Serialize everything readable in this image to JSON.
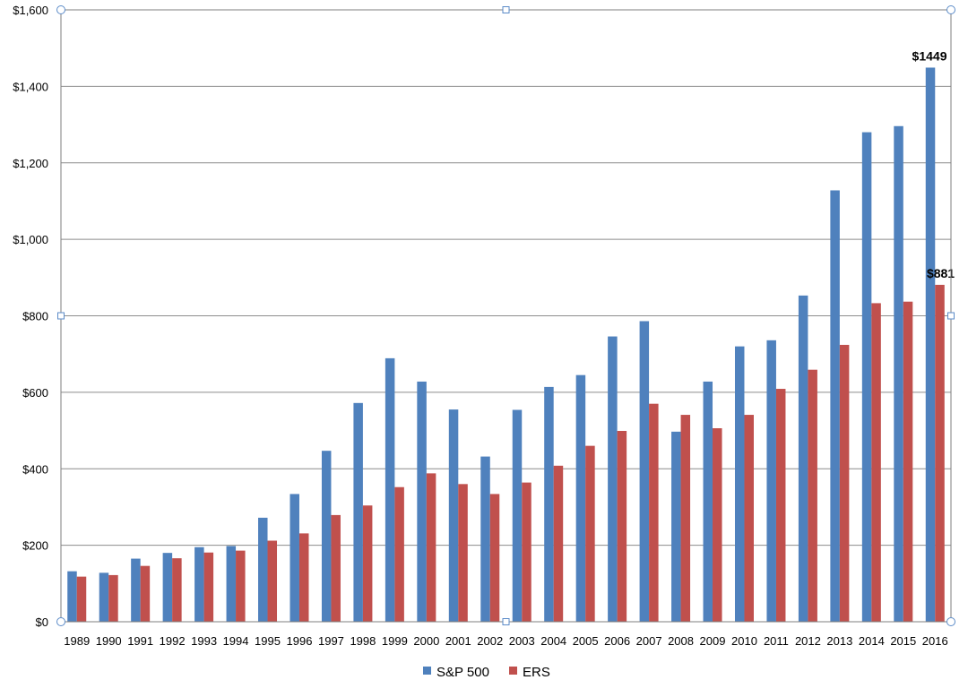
{
  "chart_data": {
    "type": "bar",
    "categories": [
      "1989",
      "1990",
      "1991",
      "1992",
      "1993",
      "1994",
      "1995",
      "1996",
      "1997",
      "1998",
      "1999",
      "2000",
      "2001",
      "2002",
      "2003",
      "2004",
      "2005",
      "2006",
      "2007",
      "2008",
      "2009",
      "2010",
      "2011",
      "2012",
      "2013",
      "2014",
      "2015",
      "2016"
    ],
    "series": [
      {
        "name": "S&P 500",
        "color": "#4f81bd",
        "values": [
          132,
          128,
          165,
          180,
          195,
          198,
          272,
          334,
          447,
          572,
          689,
          628,
          555,
          432,
          554,
          614,
          645,
          746,
          786,
          497,
          628,
          720,
          736,
          853,
          1128,
          1280,
          1296,
          1449
        ]
      },
      {
        "name": "ERS",
        "color": "#c0504d",
        "values": [
          118,
          122,
          146,
          166,
          181,
          186,
          212,
          231,
          279,
          304,
          352,
          388,
          360,
          334,
          364,
          408,
          460,
          499,
          570,
          541,
          506,
          541,
          609,
          659,
          724,
          833,
          837,
          881
        ]
      }
    ],
    "ylim": [
      0,
      1600
    ],
    "yticks": [
      "$0",
      "$200",
      "$400",
      "$600",
      "$800",
      "$1,000",
      "$1,200",
      "$1,400",
      "$1,600"
    ],
    "ytick_values": [
      0,
      200,
      400,
      600,
      800,
      1000,
      1200,
      1400,
      1600
    ],
    "annotations": [
      {
        "series": 0,
        "index": 27,
        "text": "$1449"
      },
      {
        "series": 1,
        "index": 27,
        "text": "$881"
      }
    ],
    "legend": "bottom",
    "grid": true
  }
}
